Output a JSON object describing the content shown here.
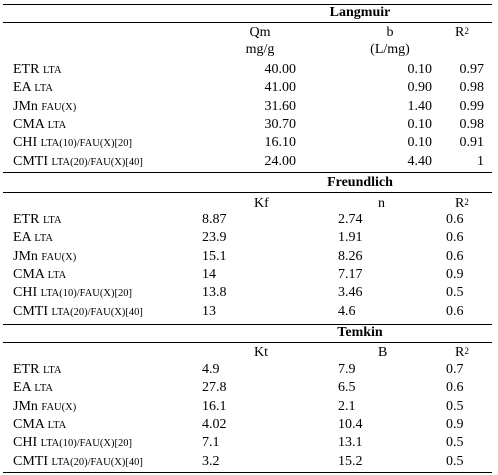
{
  "langmuir": {
    "title": "Langmuir",
    "h_qm": "Qm",
    "h_qm_unit": "mg/g",
    "h_b": "b",
    "h_b_unit": "(L/mg)",
    "h_r": "R",
    "h_r_sup": "2",
    "rows": [
      {
        "name": "ETR",
        "sub": "LTA",
        "qm": "40.00",
        "b": "0.10",
        "r2": "0.97"
      },
      {
        "name": "EA",
        "sub": "LTA",
        "qm": "41.00",
        "b": "0.90",
        "r2": "0.98"
      },
      {
        "name": "JMn",
        "sub": "FAU(X)",
        "qm": "31.60",
        "b": "1.40",
        "r2": "0.99"
      },
      {
        "name": "CMA",
        "sub": "LTA",
        "qm": "30.70",
        "b": "0.10",
        "r2": "0.98"
      },
      {
        "name": "CHI",
        "sub": "LTA(10)/FAU(X)[20]",
        "qm": "16.10",
        "b": "0.10",
        "r2": "0.91"
      },
      {
        "name": "CMTI",
        "sub": "LTA(20)/FAU(X)[40]",
        "qm": "24.00",
        "b": "4.40",
        "r2": "1"
      }
    ]
  },
  "freundlich": {
    "title": "Freundlich",
    "h_kf": "Kf",
    "h_n": "n",
    "h_r": "R",
    "h_r_sup": "2",
    "rows": [
      {
        "name": "ETR",
        "sub": "LTA",
        "kf": "8.87",
        "n": "2.74",
        "r2": "0.6"
      },
      {
        "name": "EA",
        "sub": "LTA",
        "kf": "23.9",
        "n": "1.91",
        "r2": "0.6"
      },
      {
        "name": "JMn",
        "sub": "FAU(X)",
        "kf": "15.1",
        "n": "8.26",
        "r2": "0.6"
      },
      {
        "name": "CMA",
        "sub": "LTA",
        "kf": "14",
        "n": "7.17",
        "r2": "0.9"
      },
      {
        "name": "CHI",
        "sub": "LTA(10)/FAU(X)[20]",
        "kf": "13.8",
        "n": "3.46",
        "r2": "0.5"
      },
      {
        "name": "CMTI",
        "sub": "LTA(20)/FAU(X)[40]",
        "kf": "13",
        "n": "4.6",
        "r2": "0.6"
      }
    ]
  },
  "temkin": {
    "title": "Temkin",
    "h_kt": "Kt",
    "h_b": "B",
    "h_r": "R",
    "h_r_sup": "2",
    "rows": [
      {
        "name": "ETR",
        "sub": "LTA",
        "kt": "4.9",
        "b": "7.9",
        "r2": "0.7"
      },
      {
        "name": "EA",
        "sub": "LTA",
        "kt": "27.8",
        "b": "6.5",
        "r2": "0.6"
      },
      {
        "name": "JMn",
        "sub": "FAU(X)",
        "kt": "16.1",
        "b": "2.1",
        "r2": "0.5"
      },
      {
        "name": "CMA",
        "sub": "LTA",
        "kt": "4.02",
        "b": "10.4",
        "r2": "0.9"
      },
      {
        "name": "CHI",
        "sub": "LTA(10)/FAU(X)[20]",
        "kt": "7.1",
        "b": "13.1",
        "r2": "0.5"
      },
      {
        "name": "CMTI",
        "sub": "LTA(20)/FAU(X)[40]",
        "kt": "3.2",
        "b": "15.2",
        "r2": "0.5"
      }
    ]
  }
}
